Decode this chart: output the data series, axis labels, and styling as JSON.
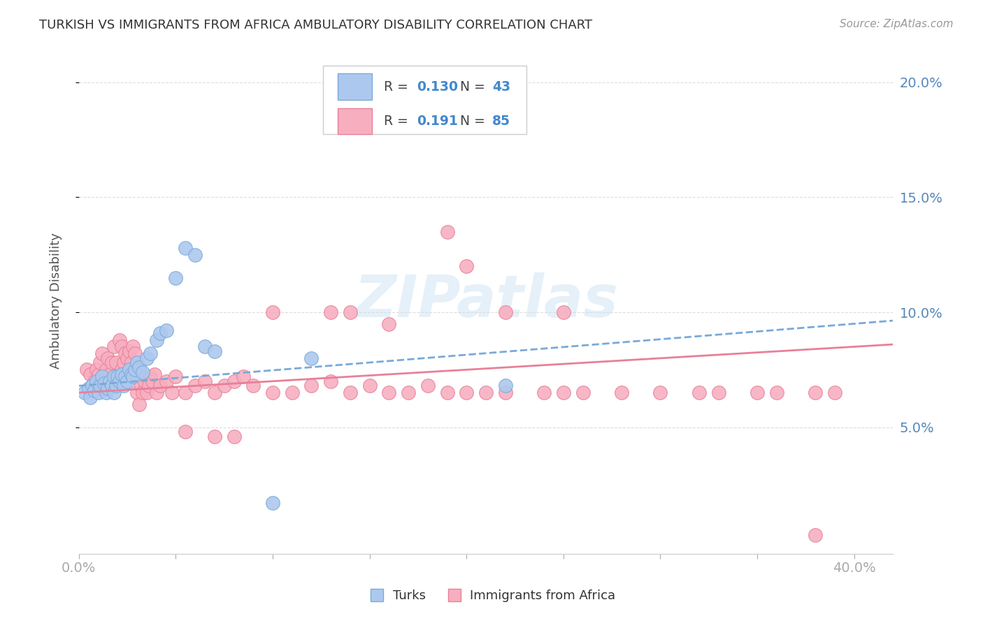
{
  "title": "TURKISH VS IMMIGRANTS FROM AFRICA AMBULATORY DISABILITY CORRELATION CHART",
  "source": "Source: ZipAtlas.com",
  "ylabel": "Ambulatory Disability",
  "xlim": [
    0.0,
    0.42
  ],
  "ylim": [
    -0.005,
    0.215
  ],
  "yticks": [
    0.05,
    0.1,
    0.15,
    0.2
  ],
  "ytick_labels": [
    "5.0%",
    "10.0%",
    "15.0%",
    "20.0%"
  ],
  "xticks": [
    0.0,
    0.05,
    0.1,
    0.15,
    0.2,
    0.25,
    0.3,
    0.35,
    0.4
  ],
  "legend_r1_val": "0.130",
  "legend_n1_val": "43",
  "legend_r2_val": "0.191",
  "legend_n2_val": "85",
  "turks_color": "#adc8ee",
  "turks_edge_color": "#7aaad8",
  "africa_color": "#f7afc0",
  "africa_edge_color": "#e8809a",
  "turks_line_color": "#7aaad8",
  "africa_line_color": "#e8809a",
  "watermark": "ZIPatlas",
  "turks_x": [
    0.003,
    0.005,
    0.006,
    0.007,
    0.008,
    0.009,
    0.01,
    0.011,
    0.012,
    0.013,
    0.014,
    0.015,
    0.016,
    0.017,
    0.018,
    0.018,
    0.019,
    0.02,
    0.021,
    0.022,
    0.023,
    0.024,
    0.025,
    0.026,
    0.027,
    0.028,
    0.029,
    0.03,
    0.031,
    0.033,
    0.035,
    0.037,
    0.04,
    0.042,
    0.045,
    0.05,
    0.055,
    0.06,
    0.065,
    0.07,
    0.1,
    0.12,
    0.22
  ],
  "turks_y": [
    0.065,
    0.067,
    0.063,
    0.068,
    0.066,
    0.07,
    0.065,
    0.068,
    0.072,
    0.069,
    0.065,
    0.067,
    0.07,
    0.068,
    0.072,
    0.065,
    0.068,
    0.072,
    0.07,
    0.073,
    0.068,
    0.072,
    0.07,
    0.075,
    0.073,
    0.072,
    0.075,
    0.078,
    0.076,
    0.074,
    0.08,
    0.082,
    0.088,
    0.091,
    0.092,
    0.115,
    0.128,
    0.125,
    0.085,
    0.083,
    0.017,
    0.08,
    0.068
  ],
  "africa_x": [
    0.004,
    0.006,
    0.008,
    0.009,
    0.01,
    0.011,
    0.012,
    0.013,
    0.014,
    0.015,
    0.016,
    0.017,
    0.018,
    0.018,
    0.019,
    0.02,
    0.021,
    0.022,
    0.022,
    0.023,
    0.024,
    0.025,
    0.026,
    0.027,
    0.028,
    0.029,
    0.03,
    0.031,
    0.032,
    0.033,
    0.034,
    0.035,
    0.036,
    0.037,
    0.038,
    0.039,
    0.04,
    0.042,
    0.045,
    0.048,
    0.05,
    0.055,
    0.06,
    0.065,
    0.07,
    0.075,
    0.08,
    0.085,
    0.09,
    0.1,
    0.11,
    0.12,
    0.13,
    0.14,
    0.15,
    0.16,
    0.17,
    0.18,
    0.19,
    0.2,
    0.21,
    0.22,
    0.24,
    0.25,
    0.26,
    0.28,
    0.3,
    0.32,
    0.33,
    0.35,
    0.36,
    0.38,
    0.1,
    0.13,
    0.14,
    0.16,
    0.19,
    0.2,
    0.22,
    0.25,
    0.055,
    0.07,
    0.08,
    0.38,
    0.39
  ],
  "africa_y": [
    0.075,
    0.073,
    0.07,
    0.075,
    0.073,
    0.078,
    0.082,
    0.073,
    0.075,
    0.08,
    0.073,
    0.078,
    0.07,
    0.085,
    0.078,
    0.073,
    0.088,
    0.075,
    0.085,
    0.078,
    0.082,
    0.08,
    0.083,
    0.078,
    0.085,
    0.082,
    0.065,
    0.06,
    0.068,
    0.065,
    0.07,
    0.065,
    0.068,
    0.072,
    0.07,
    0.073,
    0.065,
    0.068,
    0.07,
    0.065,
    0.072,
    0.065,
    0.068,
    0.07,
    0.065,
    0.068,
    0.07,
    0.072,
    0.068,
    0.065,
    0.065,
    0.068,
    0.07,
    0.065,
    0.068,
    0.065,
    0.065,
    0.068,
    0.065,
    0.065,
    0.065,
    0.065,
    0.065,
    0.065,
    0.065,
    0.065,
    0.065,
    0.065,
    0.065,
    0.065,
    0.065,
    0.065,
    0.1,
    0.1,
    0.1,
    0.095,
    0.135,
    0.12,
    0.1,
    0.1,
    0.048,
    0.046,
    0.046,
    0.003,
    0.065
  ]
}
